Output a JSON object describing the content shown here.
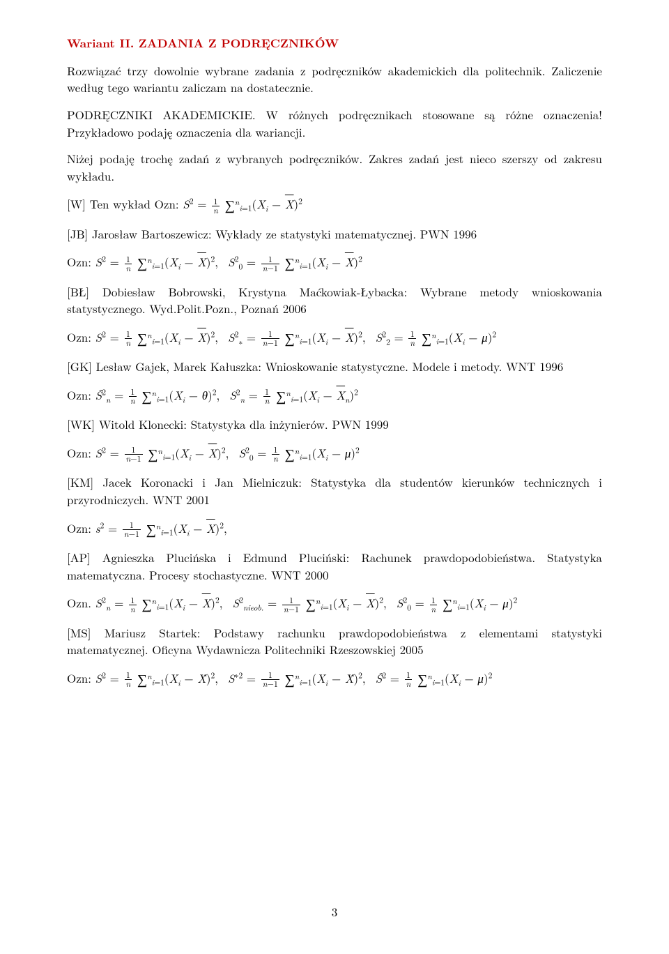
{
  "variant_title": "Wariant II. ZADANIA Z PODRĘCZNIKÓW",
  "intro_1": "Rozwiązać trzy dowolnie wybrane zadania z podręczników akademickich dla politechnik. Zaliczenie według tego wariantu zaliczam na dostatecznie.",
  "intro_2": "PODRĘCZNIKI AKADEMICKIE. W różnych podręcznikach stosowane są różne oznaczenia! Przykładowo podaję oznaczenia dla wariancji.",
  "intro_3": "Niżej podaję trochę zadań z wybranych podręczników. Zakres zadań jest nieco szerszy od zakresu wykładu.",
  "W_text": "[W] Ten wykład Ozn: ",
  "W_formula": "S² = (1/n) Σᵢ₌₁ⁿ (Xᵢ − X̄)²",
  "JB_ref": "[JB] Jarosław Bartoszewicz: Wykłady ze statystyki matematycznej. PWN 1996",
  "JB_ozn": "Ozn: ",
  "JB_formula": "S² = (1/n) Σᵢ₌₁ⁿ (Xᵢ − X̄)²,  S₀² = (1/(n−1)) Σᵢ₌₁ⁿ (Xᵢ − X̄)²",
  "BL_ref": "[BŁ] Dobiesław Bobrowski, Krystyna Maćkowiak-Łybacka: Wybrane metody wnioskowania statystycznego. Wyd.Polit.Pozn., Poznań 2006",
  "BL_ozn": "Ozn: ",
  "BL_formula": "S² = (1/n) Σᵢ₌₁ⁿ (Xᵢ − X̄)²,  S*² = (1/(n−1)) Σᵢ₌₁ⁿ (Xᵢ − X̄)²,  S₂² = (1/n) Σᵢ₌₁ⁿ (Xᵢ − μ)²",
  "GK_ref": "[GK] Lesław Gajek, Marek Kałuszka: Wnioskowanie statystyczne. Modele i metody. WNT 1996",
  "GK_ozn": "Ozn: ",
  "GK_formula": "Ŝₙ² = (1/n) Σᵢ₌₁ⁿ (Xᵢ − θ)²,  Sₙ² = (1/n) Σᵢ₌₁ⁿ (Xᵢ − X̄ₙ)²",
  "WK_ref": "[WK] Witold Klonecki: Statystyka dla inżynierów. PWN 1999",
  "WK_ozn": "Ozn: ",
  "WK_formula": "S² = (1/(n−1)) Σᵢ₌₁ⁿ (Xᵢ − X̄)²,  S₀² = (1/n) Σᵢ₌₁ⁿ (Xᵢ − μ)²",
  "KM_ref": "[KM] Jacek Koronacki i Jan Mielniczuk: Statystyka dla studentów kierunków technicznych i przyrodniczych. WNT 2001",
  "KM_ozn": "Ozn: ",
  "KM_formula": "s² = (1/(n−1)) Σᵢ₌₁ⁿ (Xᵢ − X̄)²,",
  "AP_ref": "[AP] Agnieszka Plucińska i Edmund Pluciński: Rachunek prawdopodobieństwa. Statystyka matematyczna. Procesy stochastyczne. WNT 2000",
  "AP_ozn": "Ozn. ",
  "AP_formula": "Sₙ² = (1/n) Σᵢ₌₁ⁿ (Xᵢ − X̄)²,  S²ₙᵢₑₒb. = (1/(n−1)) Σᵢ₌₁ⁿ (Xᵢ − X̄)²,  S₀² = (1/n) Σᵢ₌₁ⁿ (Xᵢ − μ)²",
  "MS_ref": "[MS] Mariusz Startek: Podstawy rachunku prawdopodobieństwa z elementami statystyki matematycznej. Oficyna Wydawnicza Politechniki Rzeszowskiej 2005",
  "MS_ozn": "Ozn: ",
  "MS_formula": "S² = (1/n) Σᵢ₌₁ⁿ (Xᵢ − X̂)²,  S*² = (1/(n−1)) Σᵢ₌₁ⁿ (Xᵢ − X̂)²,  Ŝ² = (1/n) Σᵢ₌₁ⁿ (Xᵢ − μ)²",
  "pagenum": "3",
  "colors": {
    "title": "#c00000",
    "text": "#000000",
    "background": "#ffffff"
  },
  "typography": {
    "body_fontsize_pt": 12,
    "title_weight": "bold",
    "family": "Computer Modern / serif"
  }
}
